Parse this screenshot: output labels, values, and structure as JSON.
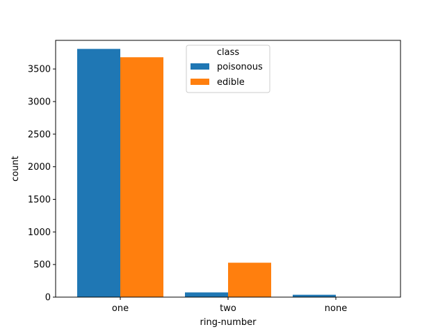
{
  "chart_data": {
    "type": "bar",
    "title": "",
    "xlabel": "ring-number",
    "ylabel": "count",
    "categories": [
      "one",
      "two",
      "none"
    ],
    "series": [
      {
        "name": "poisonous",
        "values": [
          3808,
          72,
          36
        ],
        "color": "#1f77b4"
      },
      {
        "name": "edible",
        "values": [
          3680,
          528,
          0
        ],
        "color": "#ff7f0e"
      }
    ],
    "ylim": [
      0,
      3939
    ],
    "yticks": [
      0,
      500,
      1000,
      1500,
      2000,
      2500,
      3000,
      3500
    ],
    "grid": false,
    "legend": {
      "title": "class",
      "placement": "top-center"
    }
  }
}
